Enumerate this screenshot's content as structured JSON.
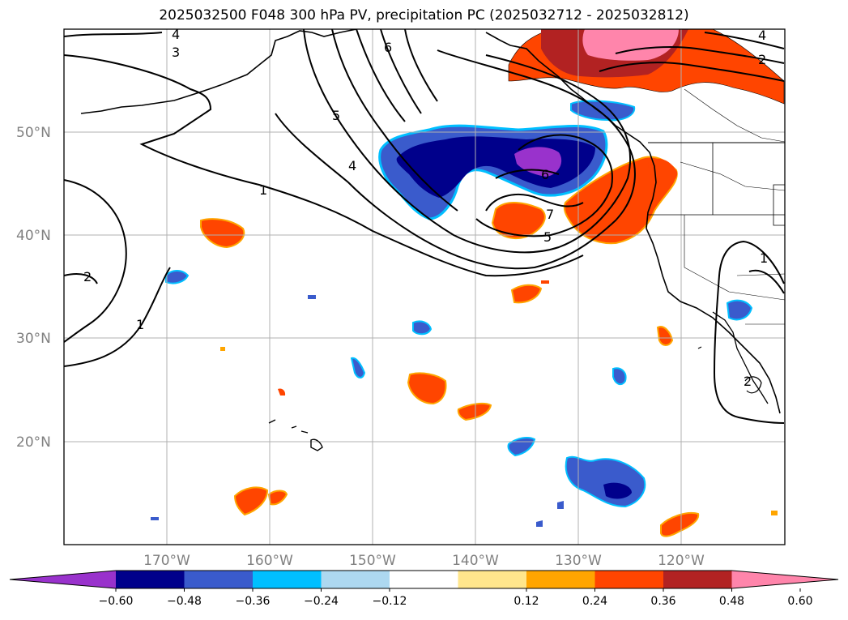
{
  "title": "2025032500 F048 300 hPa PV, precipitation PC (2025032712 - 2025032812)",
  "map": {
    "lat_labels": [
      "50°N",
      "40°N",
      "30°N",
      "20°N"
    ],
    "lon_labels": [
      "170°W",
      "160°W",
      "150°W",
      "140°W",
      "130°W",
      "120°W"
    ],
    "contour_labels": [
      "4",
      "3",
      "6",
      "5",
      "4",
      "1",
      "2",
      "1",
      "6",
      "7",
      "5",
      "4",
      "2",
      "1",
      "2"
    ]
  },
  "colorbar": {
    "colors": [
      "#9932cc",
      "#00008b",
      "#3a5bcc",
      "#00bfff",
      "#add8f0",
      "#ffffff",
      "#ffe68c",
      "#ffa500",
      "#ff4500",
      "#b22222",
      "#ff85ab"
    ],
    "ticks": [
      "−0.60",
      "−0.48",
      "−0.36",
      "−0.24",
      "−0.12",
      "0.12",
      "0.24",
      "0.36",
      "0.48",
      "0.60"
    ]
  }
}
